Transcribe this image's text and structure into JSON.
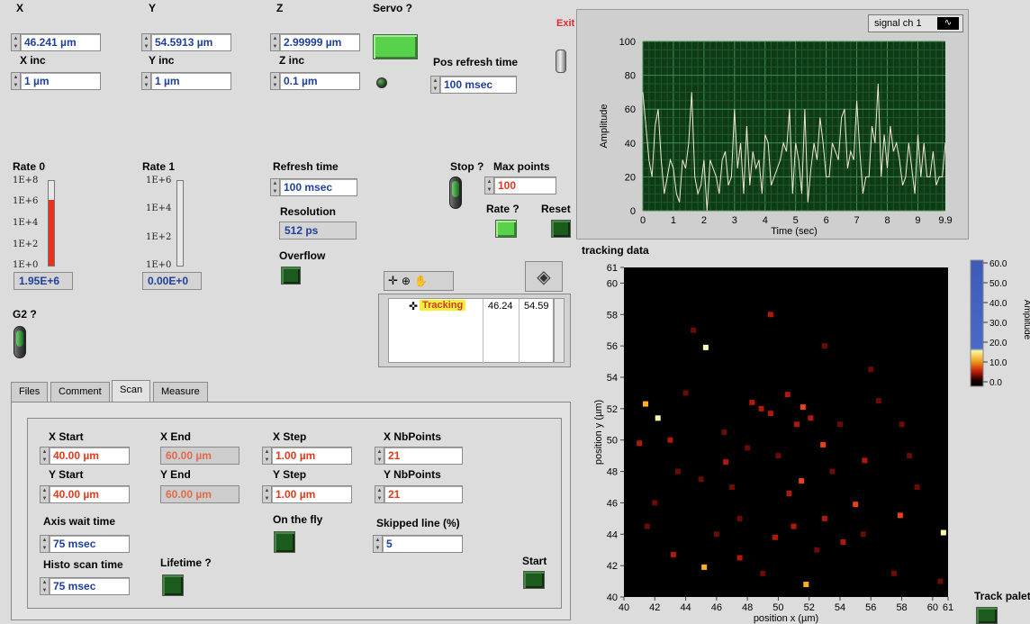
{
  "position": {
    "x": {
      "label": "X",
      "value": "46.241 µm"
    },
    "y": {
      "label": "Y",
      "value": "54.5913 µm"
    },
    "z": {
      "label": "Z",
      "value": "2.99999 µm"
    },
    "x_inc": {
      "label": "X inc",
      "value": "1 µm"
    },
    "y_inc": {
      "label": "Y inc",
      "value": "1 µm"
    },
    "z_inc": {
      "label": "Z inc",
      "value": "0.1 µm"
    }
  },
  "servo": {
    "label": "Servo ?"
  },
  "pos_refresh": {
    "label": "Pos refresh time",
    "value": "100 msec"
  },
  "exit_label": "Exit",
  "rate0": {
    "label": "Rate 0",
    "ticks": [
      "1E+8",
      "1E+6",
      "1E+4",
      "1E+2",
      "1E+0"
    ],
    "value": "1.95E+6",
    "level": 0.78
  },
  "rate1": {
    "label": "Rate 1",
    "ticks": [
      "1E+6",
      "1E+4",
      "1E+2",
      "1E+0"
    ],
    "value": "0.00E+0",
    "level": 0.0
  },
  "refresh_time": {
    "label": "Refresh time",
    "value": "100 msec"
  },
  "resolution": {
    "label": "Resolution",
    "value": "512 ps"
  },
  "overflow": {
    "label": "Overflow"
  },
  "stop": {
    "label": "Stop ?"
  },
  "max_points": {
    "label": "Max points",
    "value": "100"
  },
  "rate_q": {
    "label": "Rate ?"
  },
  "reset": {
    "label": "Reset"
  },
  "g2": {
    "label": "G2 ?"
  },
  "tracking_table": {
    "name": "Tracking",
    "x": "46.24",
    "y": "54.59"
  },
  "tabs": [
    "Files",
    "Comment",
    "Scan",
    "Measure"
  ],
  "scan": {
    "x_start": {
      "label": "X Start",
      "value": "40.00 µm"
    },
    "x_end": {
      "label": "X End",
      "value": "60.00 µm"
    },
    "x_step": {
      "label": "X Step",
      "value": "1.00 µm"
    },
    "x_nb": {
      "label": "X NbPoints",
      "value": "21"
    },
    "y_start": {
      "label": "Y Start",
      "value": "40.00 µm"
    },
    "y_end": {
      "label": "Y End",
      "value": "60.00 µm"
    },
    "y_step": {
      "label": "Y Step",
      "value": "1.00 µm"
    },
    "y_nb": {
      "label": "Y NbPoints",
      "value": "21"
    },
    "axis_wait": {
      "label": "Axis wait time",
      "value": "75 msec"
    },
    "on_the_fly": {
      "label": "On the fly"
    },
    "skipped": {
      "label": "Skipped line (%)",
      "value": "5"
    },
    "histo": {
      "label": "Histo scan time",
      "value": "75 msec"
    },
    "lifetime": {
      "label": "Lifetime ?"
    },
    "start": {
      "label": "Start"
    }
  },
  "signal_chart": {
    "legend": "signal ch 1",
    "xlabel": "Time (sec)",
    "ylabel": "Amplitude",
    "xticks": [
      "0",
      "1",
      "2",
      "3",
      "4",
      "5",
      "6",
      "7",
      "8",
      "9",
      "9.9"
    ],
    "yticks": [
      "0",
      "20",
      "40",
      "60",
      "80",
      "100"
    ],
    "xlim": [
      0,
      9.9
    ],
    "ylim": [
      0,
      100
    ],
    "values": [
      70,
      50,
      30,
      20,
      50,
      60,
      30,
      10,
      20,
      30,
      25,
      10,
      5,
      30,
      25,
      40,
      70,
      20,
      10,
      15,
      30,
      0,
      30,
      25,
      20,
      10,
      30,
      35,
      15,
      20,
      60,
      25,
      40,
      10,
      50,
      15,
      35,
      25,
      30,
      10,
      45,
      40,
      15,
      20,
      25,
      30,
      40,
      35,
      60,
      10,
      40,
      30,
      10,
      60,
      5,
      25,
      40,
      30,
      55,
      40,
      20,
      20,
      40,
      35,
      30,
      55,
      60,
      25,
      35,
      30,
      65,
      35,
      10,
      20,
      20,
      50,
      40,
      75,
      20,
      45,
      25,
      50,
      35,
      40,
      30,
      15,
      20,
      40,
      25,
      10,
      45,
      20,
      40,
      20,
      20,
      35,
      15,
      20,
      20,
      40
    ]
  },
  "tracking_chart": {
    "title": "tracking data",
    "xlabel": "position x (µm)",
    "ylabel": "position y (µm)",
    "xticks": [
      "40",
      "42",
      "44",
      "46",
      "48",
      "50",
      "52",
      "54",
      "56",
      "58",
      "60",
      "61"
    ],
    "yticks": [
      "40",
      "42",
      "44",
      "46",
      "48",
      "50",
      "52",
      "54",
      "56",
      "58",
      "60",
      "61"
    ],
    "xlim": [
      40,
      61
    ],
    "ylim": [
      40,
      61
    ],
    "colorbar_label": "Amplitude",
    "colorbar_ticks": [
      "60.0",
      "50.0",
      "40.0",
      "30.0",
      "20.0",
      "10.0",
      "0.0"
    ],
    "points": [
      [
        45.3,
        55.9,
        1.0
      ],
      [
        41.4,
        52.3,
        0.8
      ],
      [
        42.2,
        51.4,
        0.9
      ],
      [
        60.7,
        44.1,
        0.9
      ],
      [
        51.8,
        40.8,
        0.7
      ],
      [
        45.2,
        41.9,
        0.8
      ],
      [
        52.9,
        49.7,
        0.6
      ],
      [
        57.9,
        45.2,
        0.6
      ],
      [
        55.0,
        45.9,
        0.5
      ],
      [
        51.6,
        52.1,
        0.5
      ],
      [
        51.5,
        47.4,
        0.5
      ],
      [
        50.7,
        46.6,
        0.4
      ],
      [
        49.5,
        51.7,
        0.4
      ],
      [
        48.9,
        52.0,
        0.4
      ],
      [
        50.6,
        52.9,
        0.3
      ],
      [
        48.3,
        52.4,
        0.3
      ],
      [
        46.6,
        48.6,
        0.4
      ],
      [
        41.0,
        49.8,
        0.4
      ],
      [
        43.2,
        42.7,
        0.3
      ],
      [
        47.5,
        42.5,
        0.3
      ],
      [
        49.8,
        43.8,
        0.3
      ],
      [
        51.0,
        44.5,
        0.3
      ],
      [
        54.2,
        43.5,
        0.3
      ],
      [
        55.6,
        48.7,
        0.3
      ],
      [
        52.1,
        51.4,
        0.4
      ],
      [
        51.2,
        51.0,
        0.3
      ],
      [
        49.5,
        58.0,
        0.3
      ],
      [
        43.0,
        50.0,
        0.3
      ],
      [
        47.0,
        47.0,
        0.2
      ],
      [
        53.0,
        45.0,
        0.3
      ],
      [
        58.0,
        51.0,
        0.2
      ],
      [
        59.0,
        47.0,
        0.2
      ],
      [
        56.5,
        52.5,
        0.2
      ],
      [
        44.0,
        53.0,
        0.2
      ],
      [
        45.0,
        47.5,
        0.2
      ],
      [
        46.5,
        50.5,
        0.2
      ],
      [
        48.0,
        49.5,
        0.25
      ],
      [
        50.0,
        49.0,
        0.25
      ],
      [
        53.5,
        48.0,
        0.2
      ],
      [
        55.5,
        44.0,
        0.2
      ],
      [
        57.5,
        41.5,
        0.2
      ],
      [
        60.5,
        41.0,
        0.2
      ],
      [
        42.0,
        46.0,
        0.2
      ],
      [
        41.5,
        44.5,
        0.2
      ],
      [
        44.5,
        57.0,
        0.2
      ],
      [
        53.0,
        56.0,
        0.15
      ],
      [
        56.0,
        54.5,
        0.15
      ],
      [
        47.5,
        45.0,
        0.2
      ],
      [
        52.5,
        43.0,
        0.2
      ],
      [
        54.0,
        51.0,
        0.2
      ],
      [
        49.0,
        41.5,
        0.2
      ],
      [
        46.0,
        44.0,
        0.15
      ],
      [
        58.5,
        49.0,
        0.2
      ],
      [
        43.5,
        48.0,
        0.15
      ]
    ]
  }
}
